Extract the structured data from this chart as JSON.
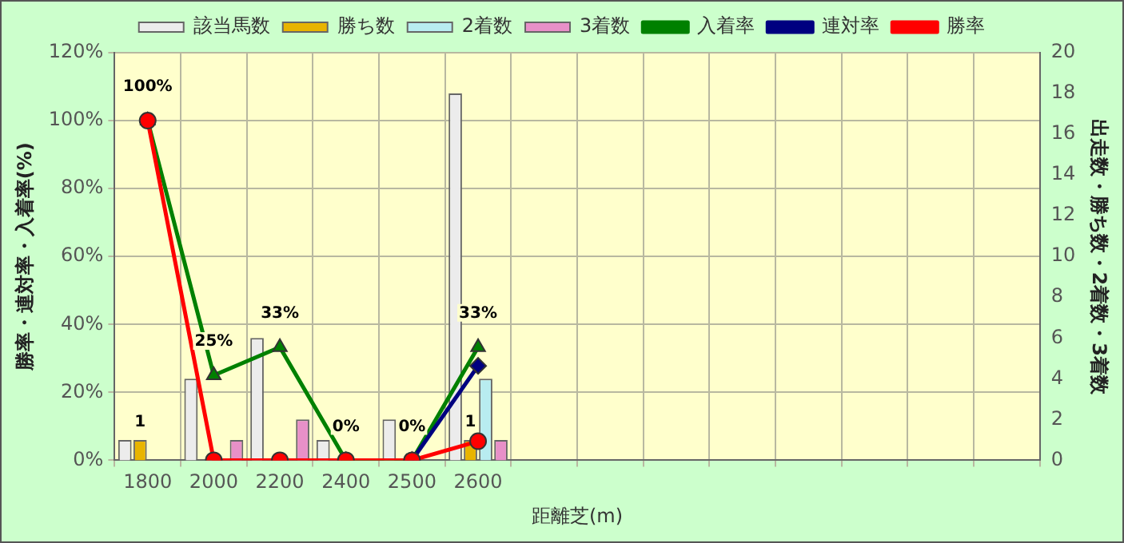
{
  "chart_data": {
    "type": "bar",
    "xlabel": "距離芝(m)",
    "ylabel": "勝率・連対率・入着率(%)",
    "y2label": "出走数・勝ち数・2着数・3着数",
    "categories": [
      "1800",
      "2000",
      "2200",
      "2400",
      "2500",
      "2600",
      null,
      null,
      null,
      null,
      null,
      null,
      null,
      null
    ],
    "ylim": [
      0,
      120
    ],
    "yticks": [
      {
        "value": 0,
        "label": "0%"
      },
      {
        "value": 20,
        "label": "20%"
      },
      {
        "value": 40,
        "label": "40%"
      },
      {
        "value": 60,
        "label": "60%"
      },
      {
        "value": 80,
        "label": "80%"
      },
      {
        "value": 100,
        "label": "100%"
      },
      {
        "value": 120,
        "label": "120%"
      }
    ],
    "y2lim": [
      0,
      20
    ],
    "y2ticks": [
      0,
      2,
      4,
      6,
      8,
      10,
      12,
      14,
      16,
      18,
      20
    ],
    "grid": true,
    "legend": "top",
    "series": [
      {
        "name": "該当馬数",
        "axis": "y2",
        "color": "#ececec",
        "values": [
          1,
          4,
          6,
          1,
          2,
          18,
          null,
          null,
          null,
          null,
          null,
          null,
          null,
          null
        ]
      },
      {
        "name": "勝ち数",
        "axis": "y2",
        "color": "#e8b400",
        "values": [
          1,
          0,
          0,
          0,
          0,
          1,
          null,
          null,
          null,
          null,
          null,
          null,
          null,
          null
        ],
        "value_labels": [
          "1",
          null,
          null,
          null,
          null,
          "1",
          null,
          null,
          null,
          null,
          null,
          null,
          null,
          null
        ]
      },
      {
        "name": "2着数",
        "axis": "y2",
        "color": "#b8ecf0",
        "values": [
          0,
          0,
          0,
          0,
          0,
          4,
          null,
          null,
          null,
          null,
          null,
          null,
          null,
          null
        ]
      },
      {
        "name": "3着数",
        "axis": "y2",
        "color": "#e890c8",
        "values": [
          0,
          1,
          2,
          0,
          0,
          1,
          null,
          null,
          null,
          null,
          null,
          null,
          null,
          null
        ]
      },
      {
        "name": "入着率",
        "type": "line",
        "color": "#008000",
        "marker": "triangle",
        "values": [
          100,
          25,
          33.3,
          0,
          0,
          33.3,
          null,
          null,
          null,
          null,
          null,
          null,
          null,
          null
        ],
        "value_labels": [
          "100%",
          "25%",
          "33%",
          "0%",
          "0%",
          "33%",
          null,
          null,
          null,
          null,
          null,
          null,
          null,
          null
        ]
      },
      {
        "name": "連対率",
        "type": "line",
        "color": "#000080",
        "marker": "diamond",
        "values": [
          null,
          null,
          null,
          null,
          0,
          27.8,
          null,
          null,
          null,
          null,
          null,
          null,
          null,
          null
        ]
      },
      {
        "name": "勝率",
        "type": "line",
        "color": "#ff0000",
        "marker": "circle",
        "values": [
          100,
          0,
          0,
          0,
          0,
          5.6,
          null,
          null,
          null,
          null,
          null,
          null,
          null,
          null
        ]
      }
    ]
  }
}
